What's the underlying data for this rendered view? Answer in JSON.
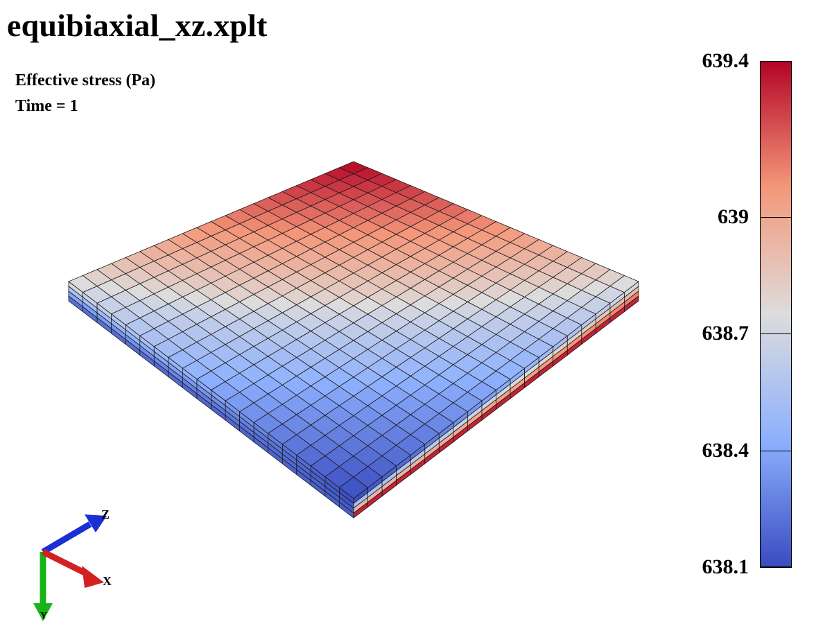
{
  "header": {
    "file_title": "equibiaxial_xz.xplt",
    "field_label": "Effective stress (Pa)",
    "time_label": "Time = 1"
  },
  "legend": {
    "min": 638.1,
    "max": 639.4,
    "ticks": [
      {
        "label": "639.4",
        "value": 639.4
      },
      {
        "label": "639",
        "value": 639.0
      },
      {
        "label": "638.7",
        "value": 638.7
      },
      {
        "label": "638.4",
        "value": 638.4
      },
      {
        "label": "638.1",
        "value": 638.1
      }
    ],
    "colormap": [
      "#3a4cc0",
      "#8db0fe",
      "#dddcdc",
      "#f4987a",
      "#b40426"
    ]
  },
  "mesh": {
    "elements_x": 20,
    "elements_z": 20,
    "layers": 4
  },
  "triad": {
    "x_label": "X",
    "y_label": "Y",
    "z_label": "Z",
    "x_color": "#d42020",
    "y_color": "#19b319",
    "z_color": "#1a2fd6"
  }
}
